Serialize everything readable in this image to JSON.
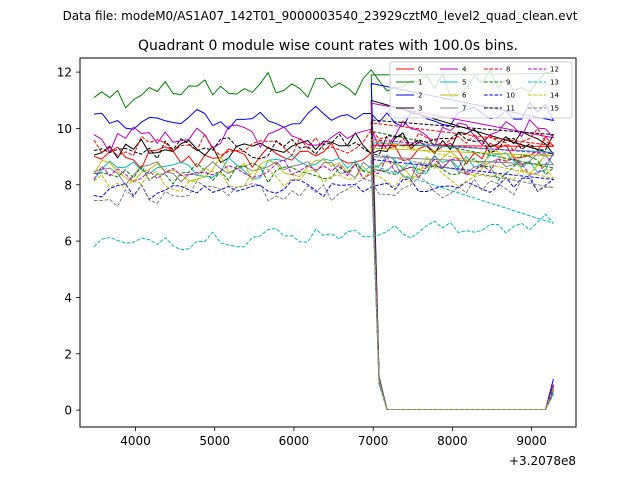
{
  "figure": {
    "suptitle": "Data file: modeM0/AS1A07_142T01_9000003540_23929cztM0_level2_quad_clean.evt"
  },
  "chart_data": {
    "type": "line",
    "title": "Quadrant 0 module wise count rates with 100.0s bins.",
    "xlabel": "",
    "ylabel": "",
    "x_offset_label": "+3.2078e8",
    "xlim": [
      3300,
      9560
    ],
    "ylim": [
      -0.6,
      12.5
    ],
    "x_ticks": [
      4000,
      5000,
      6000,
      7000,
      8000,
      9000
    ],
    "y_ticks": [
      0,
      2,
      4,
      6,
      8,
      10,
      12
    ],
    "grid": false,
    "legend_position": "top-right",
    "x_start": 3475,
    "x_step": 100,
    "n_points": 59,
    "tail": [
      {
        "x": 6975,
        "values": [
          9.4,
          11.9,
          11.6,
          11.0,
          10.9,
          9.5,
          9.3,
          9.0,
          10.2,
          9.9,
          8.9,
          10.3,
          9.6,
          8.7,
          9.6,
          9.1
        ]
      },
      {
        "x": 7075,
        "values": [
          1.0,
          1.2,
          1.1,
          1.05,
          1.1,
          0.95,
          1.0,
          1.0,
          1.1,
          1.0,
          0.95,
          1.05,
          1.1,
          0.95,
          1.0,
          1.05
        ]
      },
      {
        "x": 7175,
        "values": [
          0.02,
          0.02,
          0.02,
          0.02,
          0.02,
          0.02,
          0.02,
          0.02,
          0.02,
          0.02,
          0.02,
          0.02,
          0.02,
          0.02,
          0.02,
          0.02
        ]
      },
      {
        "x": 9175,
        "values": [
          0.02,
          0.02,
          0.02,
          0.02,
          0.02,
          0.02,
          0.02,
          0.02,
          0.02,
          0.02,
          0.02,
          0.02,
          0.02,
          0.02,
          0.02,
          0.02
        ]
      },
      {
        "x": 9275,
        "values": [
          0.8,
          0.9,
          1.1,
          0.7,
          0.9,
          0.6,
          0.8,
          0.7,
          0.9,
          0.8,
          0.75,
          0.85,
          0.9,
          0.6,
          0.8,
          0.55
        ]
      }
    ],
    "series": [
      {
        "name": "0",
        "color": "#ff0000",
        "dash": "solid",
        "base": 8.9,
        "amp": 0.35,
        "values": []
      },
      {
        "name": "1",
        "color": "#008000",
        "dash": "solid",
        "base": 11.3,
        "amp": 0.4,
        "values": []
      },
      {
        "name": "2",
        "color": "#0000ff",
        "dash": "solid",
        "base": 10.2,
        "amp": 0.3,
        "values": []
      },
      {
        "name": "3",
        "color": "#000000",
        "dash": "solid",
        "base": 9.2,
        "amp": 0.35,
        "values": []
      },
      {
        "name": "4",
        "color": "#bf00bf",
        "dash": "solid",
        "base": 9.6,
        "amp": 0.4,
        "values": []
      },
      {
        "name": "5",
        "color": "#00bfbf",
        "dash": "solid",
        "base": 8.5,
        "amp": 0.3,
        "values": []
      },
      {
        "name": "6",
        "color": "#bfbf00",
        "dash": "solid",
        "base": 8.5,
        "amp": 0.35,
        "values": []
      },
      {
        "name": "7",
        "color": "#808080",
        "dash": "solid",
        "base": 8.4,
        "amp": 0.3,
        "values": []
      },
      {
        "name": "8",
        "color": "#ff0000",
        "dash": "dashed",
        "base": 9.3,
        "amp": 0.3,
        "values": []
      },
      {
        "name": "9",
        "color": "#008000",
        "dash": "dashed",
        "base": 8.3,
        "amp": 0.3,
        "values": []
      },
      {
        "name": "10",
        "color": "#0000ff",
        "dash": "dashed",
        "base": 7.7,
        "amp": 0.25,
        "values": []
      },
      {
        "name": "11",
        "color": "#000000",
        "dash": "dashed",
        "base": 9.2,
        "amp": 0.3,
        "values": []
      },
      {
        "name": "12",
        "color": "#bf00bf",
        "dash": "dashed",
        "base": 8.4,
        "amp": 0.3,
        "values": []
      },
      {
        "name": "13",
        "color": "#00bfbf",
        "dash": "dashed",
        "base": 5.9,
        "amp": 0.25,
        "values": []
      },
      {
        "name": "14",
        "color": "#bfbf00",
        "dash": "dashed",
        "base": 8.1,
        "amp": 0.3,
        "values": []
      },
      {
        "name": "15",
        "color": "#808080",
        "dash": "dashed",
        "base": 7.6,
        "amp": 0.3,
        "values": []
      }
    ]
  }
}
